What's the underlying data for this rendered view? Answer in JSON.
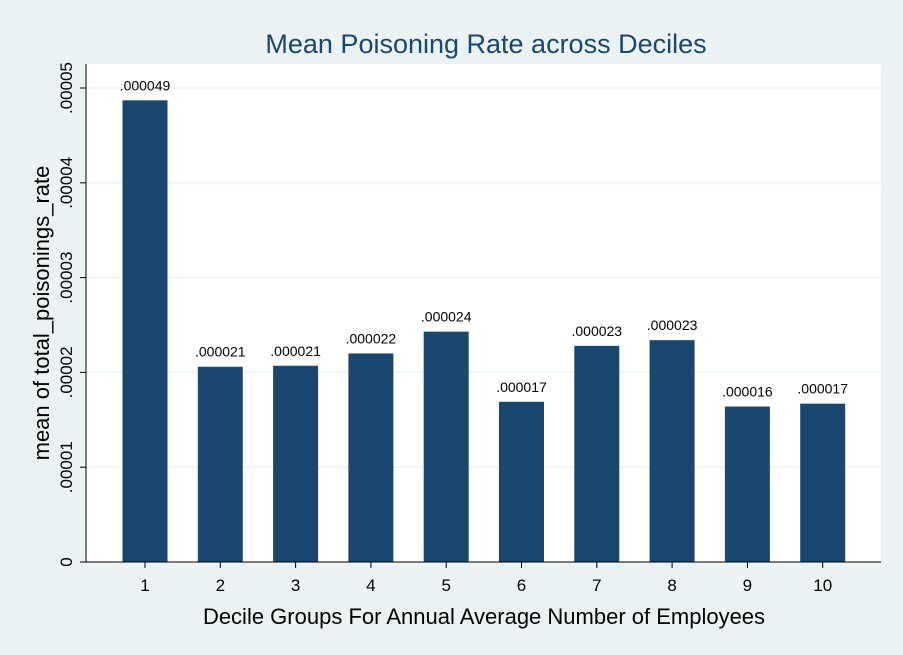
{
  "chart_data": {
    "type": "bar",
    "title": "Mean Poisoning Rate across Deciles",
    "xlabel": "Decile Groups For Annual Average Number of Employees",
    "ylabel": "mean of total_poisonings_rate",
    "categories": [
      "1",
      "2",
      "3",
      "4",
      "5",
      "6",
      "7",
      "8",
      "9",
      "10"
    ],
    "values": [
      4.87e-05,
      2.06e-05,
      2.07e-05,
      2.2e-05,
      2.43e-05,
      1.69e-05,
      2.28e-05,
      2.34e-05,
      1.64e-05,
      1.67e-05
    ],
    "data_labels": [
      ".000049",
      ".000021",
      ".000021",
      ".000022",
      ".000024",
      ".000017",
      ".000023",
      ".000023",
      ".000016",
      ".000017"
    ],
    "ylim": [
      0,
      5e-05
    ],
    "yticks": [
      0,
      1e-05,
      2e-05,
      3e-05,
      4e-05,
      5e-05
    ],
    "ytick_labels": [
      "0",
      ".00001",
      ".00002",
      ".00003",
      ".00004",
      ".00005"
    ],
    "grid": true,
    "legend": "none",
    "colors": {
      "bar": "#1a476f",
      "background": "#eaf2f3",
      "plot_background": "#ffffff",
      "gridline": "#eaf2f3",
      "title": "#1a476f"
    }
  }
}
